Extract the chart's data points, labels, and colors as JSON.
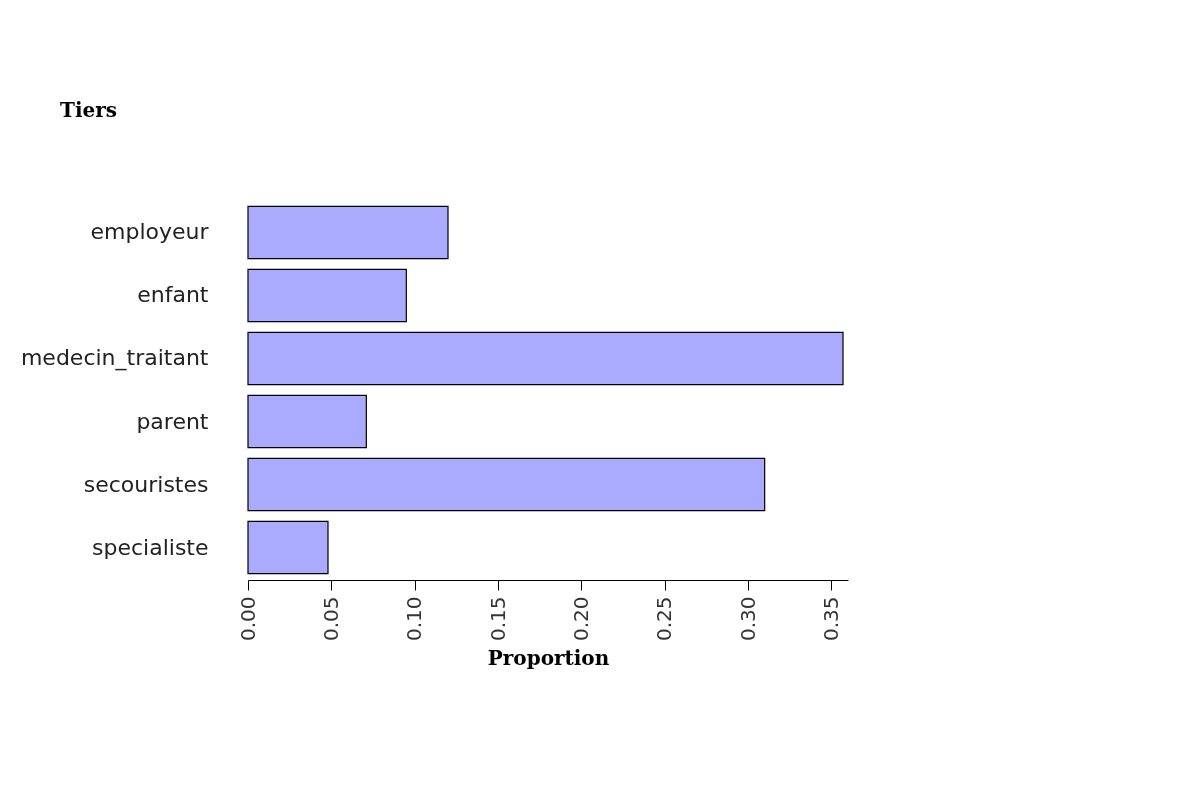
{
  "chart_data": {
    "type": "bar",
    "orientation": "horizontal",
    "ylabel": "Tiers",
    "xlabel": "Proportion",
    "categories": [
      "employeur",
      "enfant",
      "medecin_traitant",
      "parent",
      "secouristes",
      "specialiste"
    ],
    "values": [
      0.12,
      0.095,
      0.357,
      0.071,
      0.31,
      0.048
    ],
    "color": "#aaaaff",
    "xlim": [
      0,
      0.36
    ],
    "xticks": [
      {
        "value": 0,
        "label": "0.00"
      },
      0.05,
      {
        "value": 0.1,
        "label": "0.10"
      },
      0.15,
      {
        "value": 0.2,
        "label": "0.20"
      },
      0.25,
      {
        "value": 0.3,
        "label": "0.30"
      },
      0.35
    ],
    "grid": false
  }
}
